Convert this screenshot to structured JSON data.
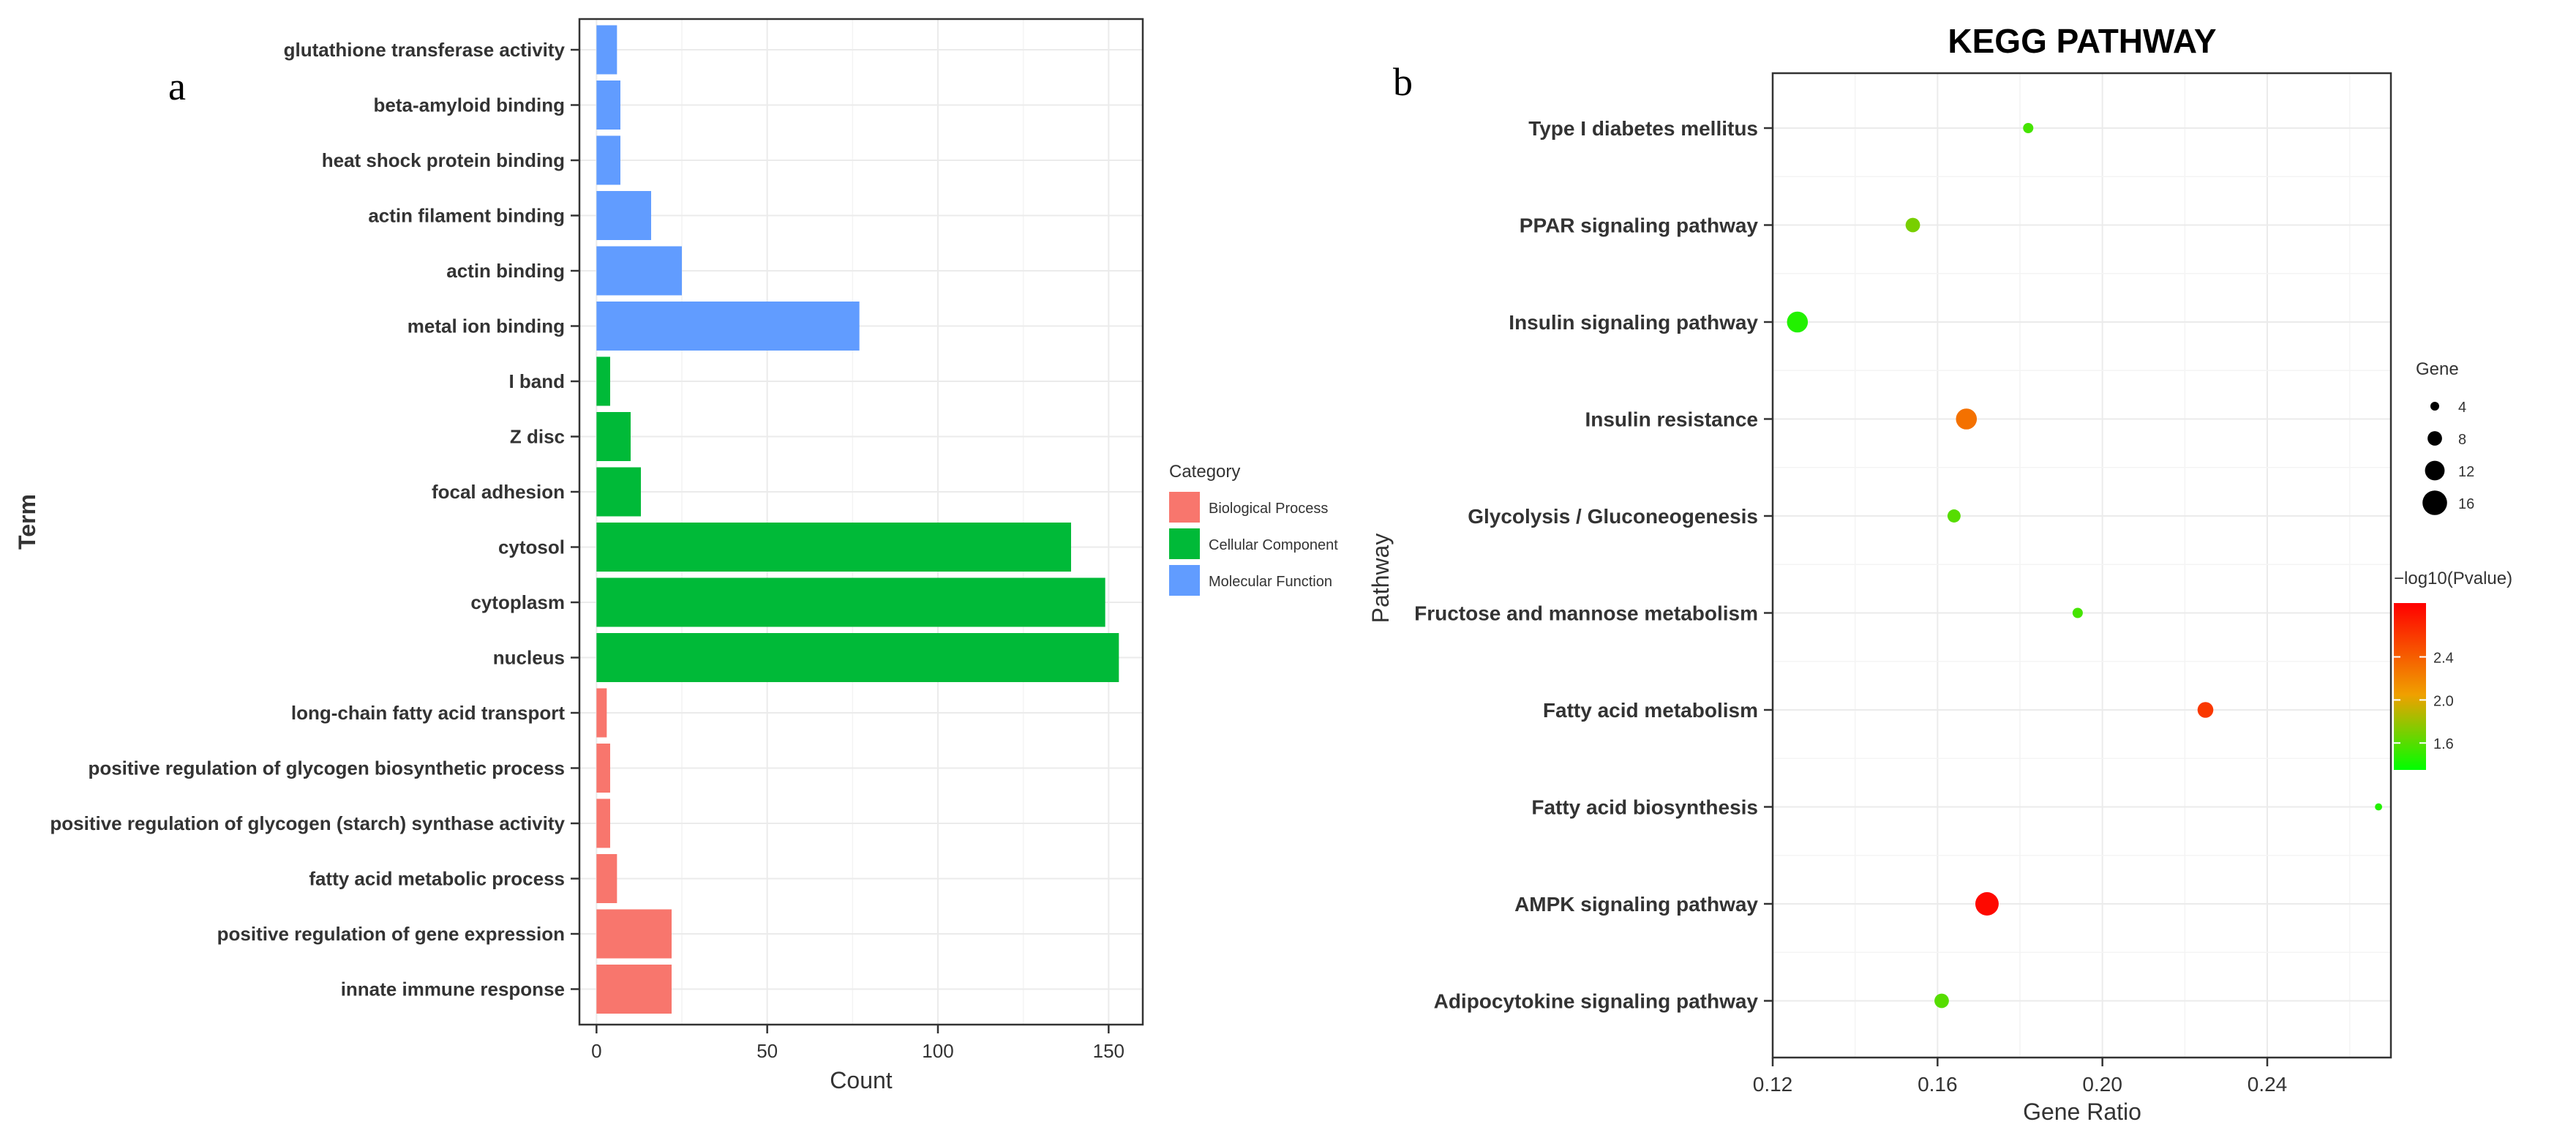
{
  "chart_data": [
    {
      "panel_label": "a",
      "type": "bar",
      "orientation": "horizontal",
      "xlabel": "Count",
      "ylabel": "Term",
      "xlim": [
        -5,
        160
      ],
      "xticks": [
        0,
        50,
        100,
        150
      ],
      "grid": true,
      "legend": {
        "title": "Category",
        "position": "right",
        "entries": [
          {
            "label": "Biological Process",
            "color": "#F8766D"
          },
          {
            "label": "Cellular Component",
            "color": "#00BA38"
          },
          {
            "label": "Molecular Function",
            "color": "#619CFF"
          }
        ]
      },
      "categories": [
        "glutathione transferase activity",
        "beta-amyloid binding",
        "heat shock protein binding",
        "actin filament binding",
        "actin binding",
        "metal ion binding",
        "I band",
        "Z disc",
        "focal adhesion",
        "cytosol",
        "cytoplasm",
        "nucleus",
        "long-chain fatty acid transport",
        "positive regulation of glycogen biosynthetic process",
        "positive regulation of glycogen (starch) synthase activity",
        "fatty acid metabolic process",
        "positive regulation of gene expression",
        "innate immune response"
      ],
      "values": [
        6,
        7,
        7,
        16,
        25,
        77,
        4,
        10,
        13,
        139,
        149,
        153,
        3,
        4,
        4,
        6,
        22,
        22
      ],
      "groups": [
        "Molecular Function",
        "Molecular Function",
        "Molecular Function",
        "Molecular Function",
        "Molecular Function",
        "Molecular Function",
        "Cellular Component",
        "Cellular Component",
        "Cellular Component",
        "Cellular Component",
        "Cellular Component",
        "Cellular Component",
        "Biological Process",
        "Biological Process",
        "Biological Process",
        "Biological Process",
        "Biological Process",
        "Biological Process"
      ]
    },
    {
      "panel_label": "b",
      "type": "scatter",
      "title": "KEGG PATHWAY",
      "xlabel": "Gene Ratio",
      "ylabel": "Pathway",
      "xlim": [
        0.12,
        0.27
      ],
      "xticks": [
        0.12,
        0.16,
        0.2,
        0.24
      ],
      "xtick_labels": [
        "0.12",
        "0.16",
        "0.20",
        "0.24"
      ],
      "grid": true,
      "size_legend": {
        "title": "Gene",
        "values": [
          4,
          8,
          12,
          16
        ],
        "labels": [
          "4",
          "8",
          "12",
          "16"
        ]
      },
      "color_legend": {
        "title": "−log10(Pvalue)",
        "low_color": "#00FF00",
        "mid_color": "#F0A000",
        "high_color": "#FF0000",
        "range": [
          1.35,
          2.9
        ],
        "ticks": [
          1.6,
          2.0,
          2.4
        ],
        "tick_labels": [
          "1.6",
          "2.0",
          "2.4"
        ]
      },
      "points": [
        {
          "pathway": "Type I diabetes mellitus",
          "gene_ratio": 0.182,
          "gene": 5,
          "neg_log10_p": 1.55
        },
        {
          "pathway": "PPAR signaling pathway",
          "gene_ratio": 0.154,
          "gene": 8,
          "neg_log10_p": 1.7
        },
        {
          "pathway": "Insulin signaling pathway",
          "gene_ratio": 0.126,
          "gene": 13,
          "neg_log10_p": 1.45
        },
        {
          "pathway": "Insulin resistance",
          "gene_ratio": 0.167,
          "gene": 13,
          "neg_log10_p": 2.3
        },
        {
          "pathway": "Glycolysis / Gluconeogenesis",
          "gene_ratio": 0.164,
          "gene": 7,
          "neg_log10_p": 1.6
        },
        {
          "pathway": "Fructose and mannose metabolism",
          "gene_ratio": 0.194,
          "gene": 5,
          "neg_log10_p": 1.55
        },
        {
          "pathway": "Fatty acid metabolism",
          "gene_ratio": 0.225,
          "gene": 9,
          "neg_log10_p": 2.6
        },
        {
          "pathway": "Fatty acid biosynthesis",
          "gene_ratio": 0.267,
          "gene": 3,
          "neg_log10_p": 1.45
        },
        {
          "pathway": "AMPK signaling pathway",
          "gene_ratio": 0.172,
          "gene": 15,
          "neg_log10_p": 2.85
        },
        {
          "pathway": "Adipocytokine signaling pathway",
          "gene_ratio": 0.161,
          "gene": 8,
          "neg_log10_p": 1.6
        }
      ]
    }
  ]
}
